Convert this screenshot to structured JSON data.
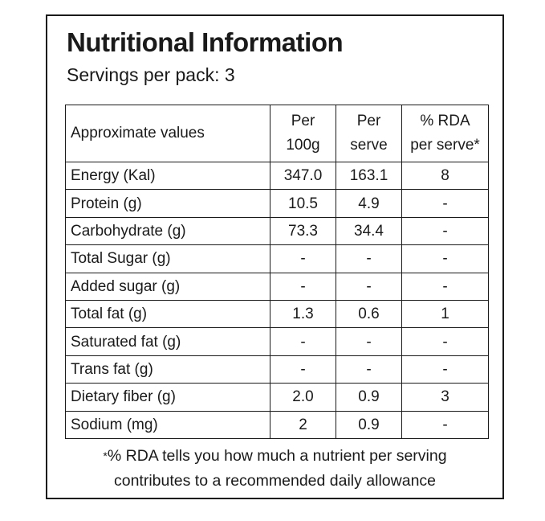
{
  "title": "Nutritional Information",
  "servings": "Servings per pack: 3",
  "table": {
    "headers": {
      "col1": "Approximate values",
      "col2_line1": "Per",
      "col2_line2": "100g",
      "col3_line1": "Per",
      "col3_line2": "serve",
      "col4_line1": "% RDA",
      "col4_line2": "per serve*"
    },
    "rows": [
      {
        "label": "Energy (Kal)",
        "per100g": "347.0",
        "perServe": "163.1",
        "rda": "8"
      },
      {
        "label": "Protein (g)",
        "per100g": "10.5",
        "perServe": "4.9",
        "rda": "-"
      },
      {
        "label": "Carbohydrate (g)",
        "per100g": "73.3",
        "perServe": "34.4",
        "rda": "-"
      },
      {
        "label": "Total Sugar (g)",
        "per100g": "-",
        "perServe": "-",
        "rda": "-"
      },
      {
        "label": "Added sugar (g)",
        "per100g": "-",
        "perServe": "-",
        "rda": "-"
      },
      {
        "label": "Total fat (g)",
        "per100g": "1.3",
        "perServe": "0.6",
        "rda": "1"
      },
      {
        "label": "Saturated fat (g)",
        "per100g": "-",
        "perServe": "-",
        "rda": "-"
      },
      {
        "label": "Trans fat (g)",
        "per100g": "-",
        "perServe": "-",
        "rda": "-"
      },
      {
        "label": "Dietary fiber (g)",
        "per100g": "2.0",
        "perServe": "0.9",
        "rda": "3"
      },
      {
        "label": "Sodium (mg)",
        "per100g": "2",
        "perServe": "0.9",
        "rda": "-"
      }
    ]
  },
  "footnote": {
    "mark": "*",
    "line1": "% RDA tells you how much a nutrient per serving",
    "line2": "contributes to a recommended daily allowance"
  }
}
